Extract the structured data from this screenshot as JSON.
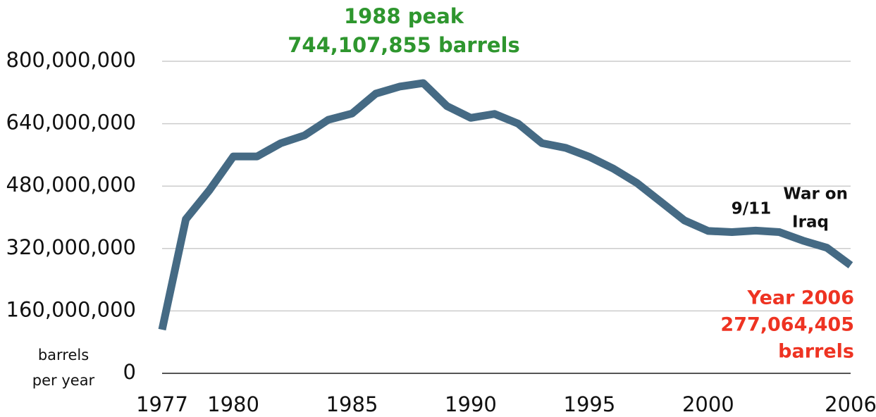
{
  "chart_data": {
    "type": "line",
    "y_label": [
      "barrels",
      "per year"
    ],
    "x": [
      1977,
      1978,
      1979,
      1980,
      1981,
      1982,
      1983,
      1984,
      1985,
      1986,
      1987,
      1988,
      1989,
      1990,
      1991,
      1992,
      1993,
      1994,
      1995,
      1996,
      1997,
      1998,
      1999,
      2000,
      2001,
      2002,
      2003,
      2004,
      2005,
      2006
    ],
    "series": [
      {
        "color": "#456a84",
        "values": [
          112000000,
          395000000,
          470000000,
          556000000,
          556000000,
          590000000,
          610000000,
          650000000,
          666000000,
          717000000,
          735000000,
          744107855,
          685000000,
          655000000,
          665000000,
          640000000,
          590000000,
          578000000,
          555000000,
          525000000,
          488000000,
          440000000,
          392000000,
          365000000,
          362000000,
          366000000,
          362000000,
          340000000,
          322000000,
          277064405
        ]
      }
    ],
    "xlim": [
      1977,
      2006
    ],
    "xticks": [
      1977,
      1980,
      1985,
      1990,
      1995,
      2000,
      2006
    ],
    "ylim": [
      0,
      800000000
    ],
    "yticks": [
      0,
      {
        "value": 160000000,
        "label": "160,000,000"
      },
      {
        "value": 320000000,
        "label": "320,000,000"
      },
      {
        "value": 480000000,
        "label": "480,000,000"
      },
      {
        "value": 640000000,
        "label": "640,000,000"
      },
      {
        "value": 800000000,
        "label": "800,000,000"
      }
    ],
    "grid": true,
    "annotations": [
      {
        "lines": [
          "1988 peak",
          "744,107,855 barrels"
        ],
        "color": "#2e962e"
      },
      {
        "lines": [
          "9/11"
        ],
        "color": "#111111"
      },
      {
        "lines": [
          "War on",
          "Iraq"
        ],
        "color": "#111111"
      },
      {
        "lines": [
          "Year 2006",
          "277,064,405",
          "barrels"
        ],
        "color": "#ee3322"
      }
    ]
  }
}
